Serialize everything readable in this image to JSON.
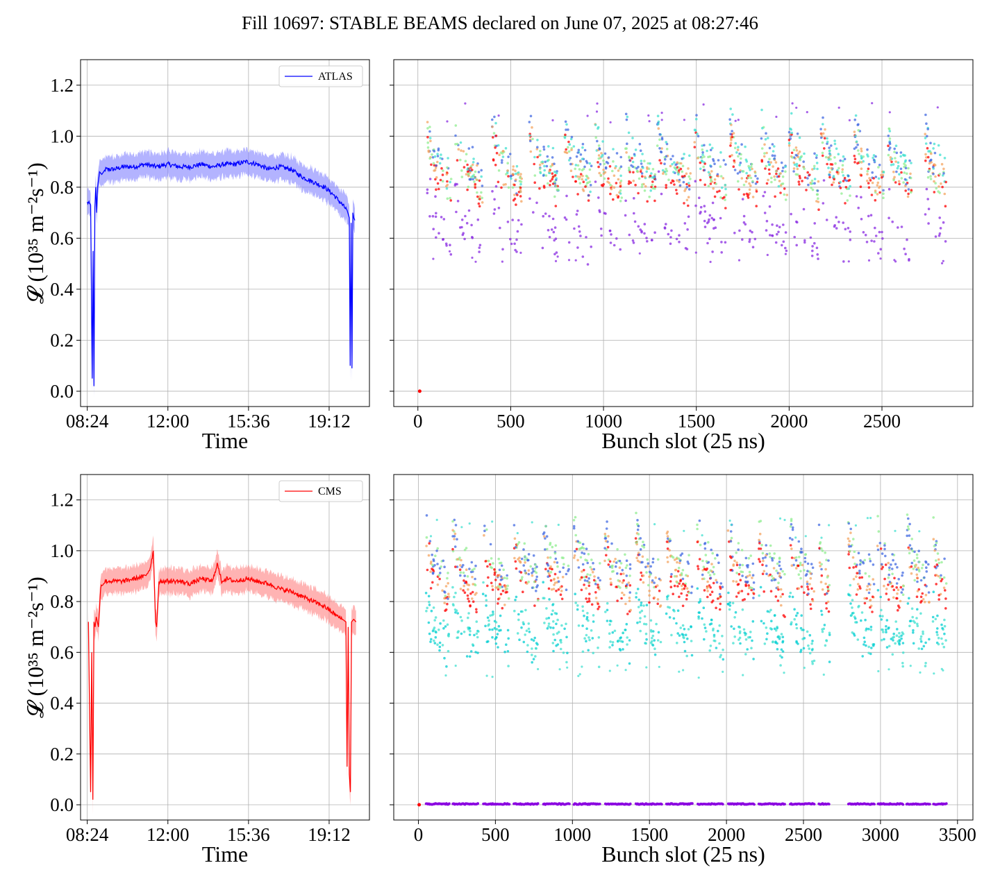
{
  "title": "Fill 10697: STABLE BEAMS declared on June 07, 2025 at 08:27:46",
  "chart_data": [
    {
      "id": "atlas-time",
      "type": "line",
      "xlabel": "Time",
      "ylabel": "𝓛 (10³⁵ m⁻²s⁻¹)",
      "x_tick_labels": [
        "08:24",
        "12:00",
        "15:36",
        "19:12"
      ],
      "x_tick_hours": [
        8.4,
        12.0,
        15.6,
        19.2
      ],
      "xlim_hours": [
        8.1,
        21.0
      ],
      "ylim": [
        -0.06,
        1.3
      ],
      "y_ticks": [
        "0.0",
        "0.2",
        "0.4",
        "0.6",
        "0.8",
        "1.0",
        "1.2"
      ],
      "grid": true,
      "legend": {
        "position": "top-right",
        "entries": [
          "ATLAS"
        ]
      },
      "color": "#0000ff",
      "band_color": "#8080ff",
      "band_halfwidth": 0.05,
      "series": [
        {
          "name": "ATLAS",
          "x_hours": [
            8.4,
            8.55,
            8.62,
            8.66,
            8.7,
            8.74,
            8.78,
            8.82,
            8.86,
            8.95,
            9.05,
            9.2,
            9.6,
            10.0,
            10.5,
            11.0,
            11.5,
            12.0,
            12.5,
            13.0,
            13.5,
            14.0,
            14.5,
            15.0,
            15.5,
            16.0,
            16.5,
            17.0,
            17.5,
            18.0,
            18.5,
            19.0,
            19.4,
            19.7,
            20.0,
            20.1,
            20.14,
            20.18,
            20.22,
            20.26,
            20.3,
            20.35
          ],
          "values": [
            0.74,
            0.73,
            0.05,
            0.55,
            0.02,
            0.72,
            0.8,
            0.7,
            0.8,
            0.86,
            0.85,
            0.87,
            0.87,
            0.88,
            0.88,
            0.89,
            0.88,
            0.89,
            0.88,
            0.88,
            0.89,
            0.88,
            0.89,
            0.89,
            0.9,
            0.89,
            0.87,
            0.88,
            0.87,
            0.84,
            0.82,
            0.8,
            0.77,
            0.74,
            0.71,
            0.68,
            0.1,
            0.66,
            0.09,
            0.7,
            0.68,
            0.67
          ]
        }
      ]
    },
    {
      "id": "atlas-bunch",
      "type": "scatter",
      "xlabel": "Bunch slot (25 ns)",
      "ylabel": "",
      "x_ticks": [
        0,
        500,
        1000,
        1500,
        2000,
        2500
      ],
      "xlim": [
        -130,
        2990
      ],
      "ylim": [
        -0.06,
        1.3
      ],
      "grid": true,
      "trains_start": [
        50,
        200,
        400,
        600,
        790,
        950,
        1110,
        1290,
        1490,
        1680,
        1850,
        2000,
        2170,
        2350,
        2530,
        2730
      ],
      "trains_end": [
        180,
        350,
        560,
        760,
        940,
        1100,
        1280,
        1470,
        1660,
        1830,
        1990,
        2160,
        2330,
        2510,
        2660,
        2850
      ],
      "level": 0.82,
      "isolated_points": [
        {
          "x": 10,
          "y": 0.0
        }
      ],
      "palette": [
        "#8a2be2",
        "#4169e1",
        "#40e0d0",
        "#90ee90",
        "#f4a460",
        "#ff0000"
      ]
    },
    {
      "id": "cms-time",
      "type": "line",
      "xlabel": "Time",
      "ylabel": "𝓛 (10³⁵ m⁻²s⁻¹)",
      "x_tick_labels": [
        "08:24",
        "12:00",
        "15:36",
        "19:12"
      ],
      "x_tick_hours": [
        8.4,
        12.0,
        15.6,
        19.2
      ],
      "xlim_hours": [
        8.1,
        21.0
      ],
      "ylim": [
        -0.06,
        1.3
      ],
      "y_ticks": [
        "0.0",
        "0.2",
        "0.4",
        "0.6",
        "0.8",
        "1.0",
        "1.2"
      ],
      "grid": true,
      "legend": {
        "position": "top-right",
        "entries": [
          "CMS"
        ]
      },
      "color": "#ff0000",
      "band_color": "#ff8080",
      "band_halfwidth": 0.05,
      "series": [
        {
          "name": "CMS",
          "x_hours": [
            8.45,
            8.55,
            8.6,
            8.65,
            8.7,
            8.75,
            8.8,
            8.9,
            9.0,
            9.2,
            9.5,
            10.0,
            10.5,
            11.0,
            11.2,
            11.35,
            11.45,
            11.5,
            11.6,
            12.0,
            12.5,
            13.0,
            13.5,
            14.0,
            14.2,
            14.4,
            14.6,
            15.0,
            15.5,
            16.0,
            16.5,
            17.0,
            17.5,
            18.0,
            18.5,
            19.0,
            19.3,
            19.6,
            19.8,
            19.95,
            20.0,
            20.05,
            20.1,
            20.15,
            20.2,
            20.3,
            20.4
          ],
          "values": [
            0.72,
            0.05,
            0.6,
            0.02,
            0.72,
            0.7,
            0.74,
            0.7,
            0.86,
            0.88,
            0.88,
            0.88,
            0.89,
            0.9,
            0.93,
            1.0,
            0.72,
            0.7,
            0.88,
            0.88,
            0.88,
            0.87,
            0.89,
            0.88,
            0.95,
            0.88,
            0.89,
            0.88,
            0.89,
            0.88,
            0.87,
            0.85,
            0.84,
            0.82,
            0.8,
            0.78,
            0.76,
            0.74,
            0.73,
            0.72,
            0.15,
            0.7,
            0.12,
            0.05,
            0.72,
            0.73,
            0.72
          ]
        }
      ]
    },
    {
      "id": "cms-bunch",
      "type": "scatter",
      "xlabel": "Bunch slot (25 ns)",
      "ylabel": "",
      "x_ticks": [
        0,
        500,
        1000,
        1500,
        2000,
        2500,
        3000,
        3500
      ],
      "xlim": [
        -160,
        3600
      ],
      "ylim": [
        -0.06,
        1.3
      ],
      "grid": true,
      "trains_start": [
        50,
        220,
        420,
        620,
        810,
        1010,
        1210,
        1410,
        1610,
        1810,
        2010,
        2210,
        2410,
        2600,
        2790,
        2980,
        3170,
        3340
      ],
      "trains_end": [
        200,
        390,
        590,
        780,
        980,
        1180,
        1380,
        1580,
        1780,
        1980,
        2180,
        2380,
        2570,
        2670,
        2960,
        3150,
        3320,
        3430
      ],
      "level": 0.85,
      "zero_row": {
        "from": 50,
        "to": 3430,
        "y": 0.003
      },
      "isolated_points": [
        {
          "x": 5,
          "y": 0.0
        }
      ],
      "palette": [
        "#00ced1",
        "#40e0d0",
        "#4169e1",
        "#90ee90",
        "#f4a460",
        "#ff0000"
      ]
    }
  ]
}
